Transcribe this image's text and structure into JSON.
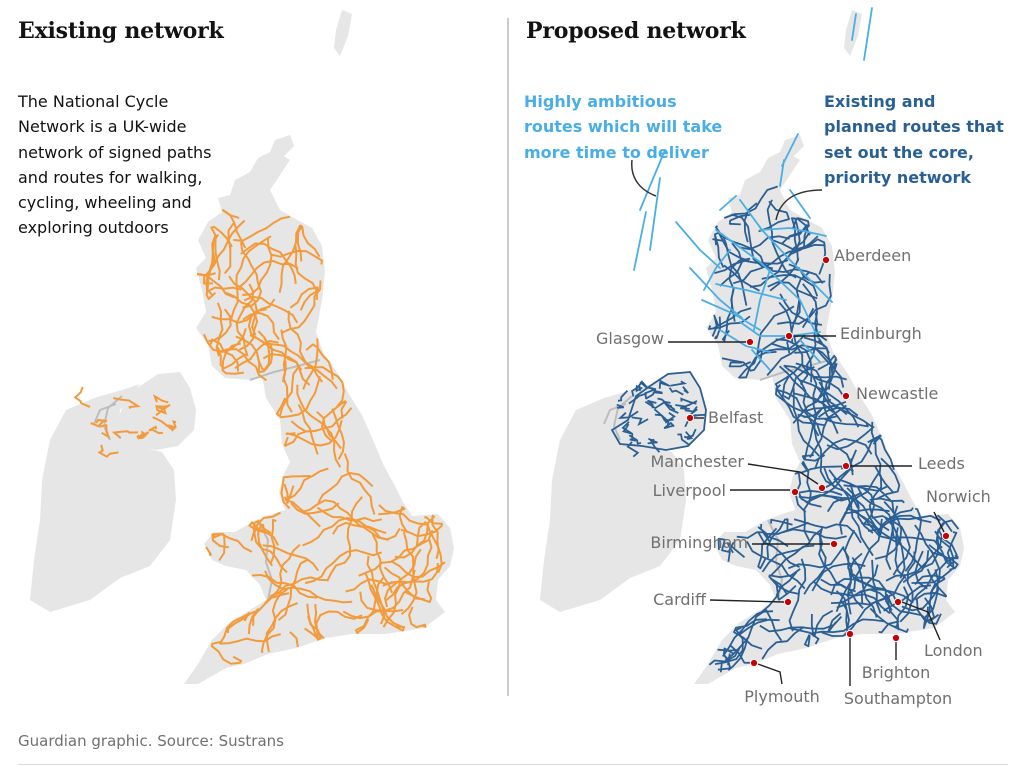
{
  "panels": {
    "existing": {
      "title": "Existing network",
      "description": "The National Cycle Network is a UK-wide network of signed paths and routes for walking, cycling, wheeling and exploring outdoors"
    },
    "proposed": {
      "title": "Proposed network",
      "legend": {
        "ambitious": "Highly ambitious routes which will take more time to deliver",
        "core": "Existing and planned routes that set out the core, priority network"
      }
    }
  },
  "cities": [
    {
      "name": "Aberdeen"
    },
    {
      "name": "Glasgow"
    },
    {
      "name": "Edinburgh"
    },
    {
      "name": "Newcastle"
    },
    {
      "name": "Belfast"
    },
    {
      "name": "Manchester"
    },
    {
      "name": "Leeds"
    },
    {
      "name": "Liverpool"
    },
    {
      "name": "Norwich"
    },
    {
      "name": "Birmingham"
    },
    {
      "name": "Cardiff"
    },
    {
      "name": "London"
    },
    {
      "name": "Brighton"
    },
    {
      "name": "Plymouth"
    },
    {
      "name": "Southampton"
    }
  ],
  "colors": {
    "land": "#e6e6e6",
    "border": "#bdbdbd",
    "existing_routes": "#f39a3a",
    "ambitious_routes": "#4aaee6",
    "core_routes": "#2a5f94",
    "city_marker": "#c70000",
    "label_grey": "#707070"
  },
  "source": "Guardian graphic. Source: Sustrans"
}
